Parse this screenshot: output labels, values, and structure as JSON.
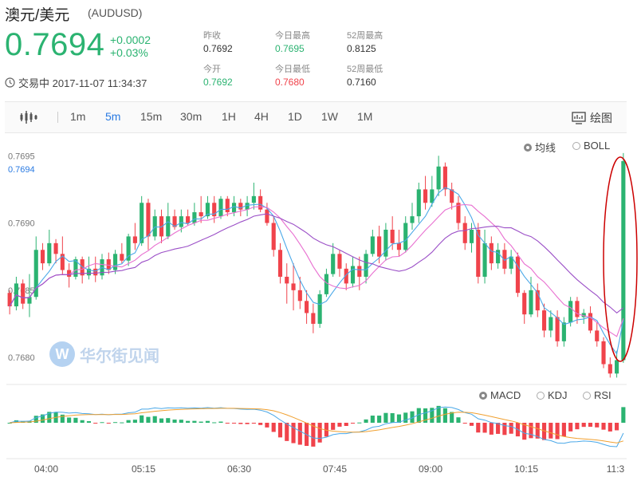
{
  "header": {
    "title": "澳元/美元",
    "code": "(AUDUSD)",
    "price": "0.7694",
    "change": "+0.0002",
    "change_pct": "+0.03%",
    "status_time": "交易中 2017-11-07 11:34:37",
    "stats": [
      {
        "label": "昨收",
        "value": "0.7692",
        "tone": "neutral"
      },
      {
        "label": "今日最高",
        "value": "0.7695",
        "tone": "green"
      },
      {
        "label": "52周最高",
        "value": "0.8125",
        "tone": "neutral"
      },
      {
        "label": "今开",
        "value": "0.7692",
        "tone": "green"
      },
      {
        "label": "今日最低",
        "value": "0.7680",
        "tone": "red"
      },
      {
        "label": "52周最低",
        "value": "0.7160",
        "tone": "neutral"
      }
    ]
  },
  "toolbar": {
    "tabs": [
      "1m",
      "5m",
      "15m",
      "30m",
      "1H",
      "4H",
      "1D",
      "1W",
      "1M"
    ],
    "active_tab": "5m",
    "draw_label": "绘图"
  },
  "indicators_top": {
    "ma": "均线",
    "boll": "BOLL"
  },
  "indicators_bottom": {
    "macd": "MACD",
    "kdj": "KDJ",
    "rsi": "RSI"
  },
  "watermark": "华尔街见闻",
  "colors": {
    "up": "#2bb371",
    "down": "#f0434b",
    "accent": "#2a7ae2",
    "ma5": "#4aa8e8",
    "ma10": "#e86fd0",
    "ma20": "#9b4fc7",
    "highlight": "#cc0000"
  },
  "chart_data": {
    "type": "candlestick",
    "price_axis_ticks": [
      "0.7695",
      "0.7690",
      "0.7685",
      "0.7680"
    ],
    "current_price_label": "0.7694",
    "ylim": [
      0.76787,
      0.76965
    ],
    "x_tick_labels": [
      "04:00",
      "05:15",
      "06:30",
      "07:45",
      "09:00",
      "10:15",
      "11:3"
    ],
    "candles": [
      [
        0.76848,
        0.7685,
        0.76832,
        0.76838
      ],
      [
        0.76838,
        0.7686,
        0.76835,
        0.76855
      ],
      [
        0.76855,
        0.76858,
        0.76836,
        0.7684
      ],
      [
        0.7684,
        0.76862,
        0.7683,
        0.76845
      ],
      [
        0.76845,
        0.7689,
        0.76843,
        0.7688
      ],
      [
        0.7688,
        0.76885,
        0.76865,
        0.7687
      ],
      [
        0.7687,
        0.76895,
        0.76868,
        0.76885
      ],
      [
        0.76885,
        0.76888,
        0.7687,
        0.76877
      ],
      [
        0.76877,
        0.7689,
        0.76862,
        0.76865
      ],
      [
        0.76865,
        0.7687,
        0.76852,
        0.7686
      ],
      [
        0.7686,
        0.76875,
        0.76858,
        0.76873
      ],
      [
        0.76873,
        0.76875,
        0.76855,
        0.76861
      ],
      [
        0.76861,
        0.76875,
        0.76858,
        0.76866
      ],
      [
        0.76866,
        0.76875,
        0.76856,
        0.76861
      ],
      [
        0.76861,
        0.76877,
        0.76858,
        0.76873
      ],
      [
        0.76873,
        0.76878,
        0.76862,
        0.76865
      ],
      [
        0.76865,
        0.7688,
        0.76862,
        0.76877
      ],
      [
        0.76877,
        0.76885,
        0.7687,
        0.76872
      ],
      [
        0.76872,
        0.76892,
        0.76868,
        0.7689
      ],
      [
        0.7689,
        0.769,
        0.7688,
        0.76885
      ],
      [
        0.76885,
        0.7692,
        0.76883,
        0.76915
      ],
      [
        0.76915,
        0.76918,
        0.7688,
        0.7689
      ],
      [
        0.7689,
        0.7691,
        0.76887,
        0.76905
      ],
      [
        0.76905,
        0.7691,
        0.76885,
        0.7689
      ],
      [
        0.7689,
        0.76915,
        0.76888,
        0.76905
      ],
      [
        0.76905,
        0.7691,
        0.76895,
        0.76897
      ],
      [
        0.76897,
        0.7691,
        0.76893,
        0.76905
      ],
      [
        0.76905,
        0.7691,
        0.76898,
        0.769
      ],
      [
        0.769,
        0.76915,
        0.76898,
        0.76908
      ],
      [
        0.76908,
        0.7692,
        0.769,
        0.76905
      ],
      [
        0.76905,
        0.7692,
        0.76903,
        0.76915
      ],
      [
        0.76915,
        0.7692,
        0.769,
        0.76905
      ],
      [
        0.76905,
        0.7692,
        0.76903,
        0.76918
      ],
      [
        0.76918,
        0.7692,
        0.76905,
        0.76908
      ],
      [
        0.76908,
        0.7692,
        0.76905,
        0.76915
      ],
      [
        0.76915,
        0.76918,
        0.76905,
        0.7691
      ],
      [
        0.7691,
        0.7692,
        0.76905,
        0.76915
      ],
      [
        0.76915,
        0.7693,
        0.7691,
        0.7692
      ],
      [
        0.7692,
        0.76925,
        0.76908,
        0.7691
      ],
      [
        0.7691,
        0.76915,
        0.76898,
        0.769
      ],
      [
        0.769,
        0.76905,
        0.76875,
        0.7688
      ],
      [
        0.7688,
        0.76885,
        0.76855,
        0.7686
      ],
      [
        0.7686,
        0.7687,
        0.7684,
        0.76855
      ],
      [
        0.76855,
        0.7687,
        0.76835,
        0.7685
      ],
      [
        0.7685,
        0.7686,
        0.76836,
        0.76842
      ],
      [
        0.76842,
        0.7685,
        0.76825,
        0.76833
      ],
      [
        0.76833,
        0.7684,
        0.76818,
        0.76825
      ],
      [
        0.76825,
        0.7685,
        0.76822,
        0.76847
      ],
      [
        0.76847,
        0.76866,
        0.76845,
        0.76862
      ],
      [
        0.76862,
        0.76885,
        0.7686,
        0.76877
      ],
      [
        0.76877,
        0.7688,
        0.7686,
        0.76866
      ],
      [
        0.76866,
        0.7687,
        0.7685,
        0.76855
      ],
      [
        0.76855,
        0.76875,
        0.76852,
        0.76868
      ],
      [
        0.76868,
        0.76875,
        0.7685,
        0.7686
      ],
      [
        0.7686,
        0.7688,
        0.76855,
        0.76877
      ],
      [
        0.76877,
        0.76895,
        0.76875,
        0.7689
      ],
      [
        0.7689,
        0.76898,
        0.7687,
        0.76875
      ],
      [
        0.76875,
        0.769,
        0.76872,
        0.76895
      ],
      [
        0.76895,
        0.76905,
        0.7688,
        0.76885
      ],
      [
        0.76885,
        0.76895,
        0.76875,
        0.7688
      ],
      [
        0.7688,
        0.76905,
        0.76878,
        0.769
      ],
      [
        0.769,
        0.76915,
        0.76895,
        0.76905
      ],
      [
        0.76905,
        0.7693,
        0.769,
        0.76925
      ],
      [
        0.76925,
        0.76935,
        0.7691,
        0.76915
      ],
      [
        0.76915,
        0.76935,
        0.76912,
        0.76925
      ],
      [
        0.76925,
        0.7695,
        0.7692,
        0.76942
      ],
      [
        0.76942,
        0.76945,
        0.7692,
        0.76925
      ],
      [
        0.76925,
        0.7693,
        0.7691,
        0.76915
      ],
      [
        0.76915,
        0.7692,
        0.76895,
        0.769
      ],
      [
        0.769,
        0.76905,
        0.7688,
        0.76885
      ],
      [
        0.76885,
        0.769,
        0.76878,
        0.76895
      ],
      [
        0.76895,
        0.769,
        0.76855,
        0.7686
      ],
      [
        0.7686,
        0.76895,
        0.76855,
        0.76885
      ],
      [
        0.76885,
        0.7689,
        0.76865,
        0.7687
      ],
      [
        0.7687,
        0.76885,
        0.76866,
        0.7688
      ],
      [
        0.7688,
        0.76885,
        0.76862,
        0.76866
      ],
      [
        0.76866,
        0.7688,
        0.76862,
        0.76875
      ],
      [
        0.76875,
        0.76878,
        0.76845,
        0.76848
      ],
      [
        0.76848,
        0.7685,
        0.76825,
        0.76832
      ],
      [
        0.76832,
        0.7686,
        0.7683,
        0.7685
      ],
      [
        0.7685,
        0.76855,
        0.7683,
        0.76835
      ],
      [
        0.76835,
        0.7684,
        0.76815,
        0.7682
      ],
      [
        0.7682,
        0.76835,
        0.76815,
        0.7683
      ],
      [
        0.7683,
        0.76835,
        0.76808,
        0.76812
      ],
      [
        0.76812,
        0.7683,
        0.76808,
        0.76826
      ],
      [
        0.76826,
        0.76845,
        0.76823,
        0.76842
      ],
      [
        0.76842,
        0.76845,
        0.76825,
        0.7683
      ],
      [
        0.7683,
        0.76836,
        0.76825,
        0.76833
      ],
      [
        0.76833,
        0.76838,
        0.76818,
        0.7682
      ],
      [
        0.7682,
        0.76826,
        0.76808,
        0.76812
      ],
      [
        0.76812,
        0.76815,
        0.76792,
        0.76795
      ],
      [
        0.76795,
        0.768,
        0.76785,
        0.76788
      ],
      [
        0.76788,
        0.76805,
        0.76785,
        0.76798
      ],
      [
        0.76798,
        0.76952,
        0.76796,
        0.76946
      ]
    ],
    "ma_series": [
      {
        "name": "ma5",
        "color": "#4aa8e8",
        "period": 5
      },
      {
        "name": "ma10",
        "color": "#e86fd0",
        "period": 10
      },
      {
        "name": "ma20",
        "color": "#9b4fc7",
        "period": 20
      }
    ]
  }
}
